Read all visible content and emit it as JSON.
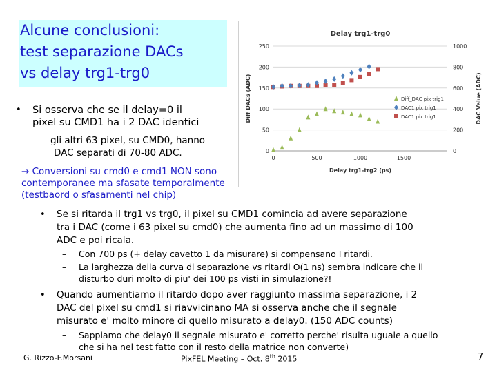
{
  "title": {
    "lines": [
      "Alcune conclusioni:",
      "test separazione DACs",
      "vs delay trg1-trg0"
    ]
  },
  "bullet1": {
    "lines": [
      "Si osserva che se il delay=0 il",
      "pixel su CMD1 ha i 2 DAC identici"
    ],
    "sub": [
      "– gli altri 63 pixel, su CMD0, hanno",
      "DAC separati di 70-80 ADC."
    ]
  },
  "arrow_note": {
    "lines": [
      "→ Conversioni su cmd0 e cmd1 NON sono",
      "contemporanee ma sfasate temporalmente",
      "(testbaord o sfasamenti nel chip)"
    ]
  },
  "bullet2": {
    "lines": [
      "Se si ritarda il trg1 vs trg0, il pixel su CMD1 comincia ad avere separazione",
      "tra i DAC (come i 63 pixel su cmd0) che aumenta fino ad un massimo di 100",
      "ADC e poi ricala."
    ],
    "subs": [
      {
        "dash": "–",
        "lines": [
          "Con 700 ps (+ delay cavetto 1 da misurare) si compensano I ritardi."
        ]
      },
      {
        "dash": "–",
        "lines": [
          "La larghezza della curva di separazione vs ritardi O(1 ns) sembra indicare che il",
          "disturbo duri molto di piu' dei 100 ps visti in simulazione?!"
        ]
      }
    ]
  },
  "bullet3": {
    "lines": [
      "Quando aumentiamo il ritardo dopo aver raggiunto massima separazione, i 2",
      "DAC del pixel su cmd1 si riavvicinano MA si osserva anche che il segnale",
      "misurato e' molto minore di quello misurato a delay0. (150 ADC counts)"
    ],
    "subs": [
      {
        "dash": "–",
        "lines": [
          "Sappiamo che delay0 il segnale misurato e' corretto perche' risulta uguale a quello",
          "che si ha nel test fatto con il resto della matrice non converte)"
        ]
      }
    ]
  },
  "footer": {
    "authors": "G. Rizzo-F.Morsani",
    "meeting": "PixFEL Meeting – Oct. 8",
    "meeting_sup": "th",
    "meeting_year": " 2015",
    "page": "7"
  },
  "chart_data": {
    "type": "scatter",
    "title": "Delay trg1-trg0",
    "xlabel": "Delay trg1-trg2 (ps)",
    "ylabel": "Diff DACs (ADC)",
    "y2label": "DAC Value (ADC)",
    "xlim": [
      0,
      2000
    ],
    "ylim": [
      0,
      250
    ],
    "y2lim": [
      0,
      1000
    ],
    "x_ticks": [
      0,
      500,
      1000,
      1500
    ],
    "y_ticks": [
      0,
      50,
      100,
      150,
      200,
      250
    ],
    "y2_ticks": [
      0,
      200,
      400,
      600,
      800,
      1000
    ],
    "legend_position": "right",
    "series": [
      {
        "name": "Diff_DAC pix trig1",
        "color": "#9bbb59",
        "marker": "triangle",
        "axis": "left",
        "x": [
          0,
          100,
          200,
          300,
          400,
          500,
          600,
          700,
          800,
          900,
          1000,
          1100,
          1200
        ],
        "y": [
          2,
          8,
          30,
          50,
          80,
          88,
          100,
          95,
          92,
          88,
          85,
          76,
          70
        ]
      },
      {
        "name": "DAC1 pix trig1",
        "color": "#4f81bd",
        "marker": "diamond",
        "axis": "right",
        "x": [
          0,
          100,
          200,
          300,
          400,
          500,
          600,
          700,
          800,
          900,
          1000,
          1100
        ],
        "y": [
          610,
          620,
          620,
          625,
          630,
          650,
          665,
          685,
          715,
          745,
          775,
          805
        ]
      },
      {
        "name": "DAC1 pix trig1",
        "color": "#c0504d",
        "marker": "square",
        "axis": "right",
        "x": [
          0,
          100,
          200,
          300,
          400,
          500,
          600,
          700,
          800,
          900,
          1000,
          1100,
          1200
        ],
        "y": [
          610,
          615,
          620,
          620,
          620,
          620,
          625,
          630,
          650,
          675,
          705,
          735,
          780
        ]
      }
    ]
  }
}
